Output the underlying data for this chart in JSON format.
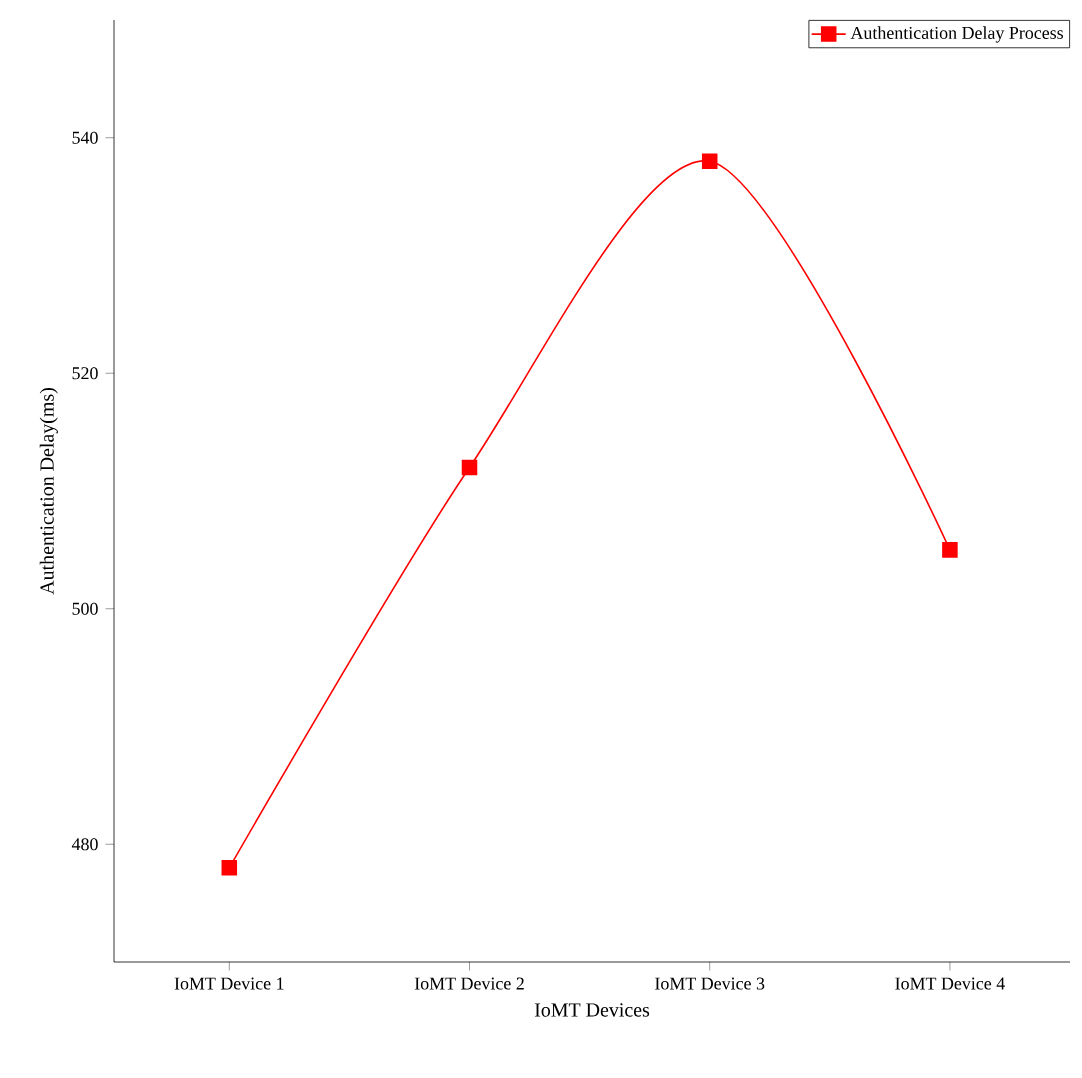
{
  "chart_data": {
    "type": "line",
    "xlabel": "IoMT Devices",
    "ylabel": "Authentication Delay(ms)",
    "categories": [
      "IoMT Device 1",
      "IoMT Device 2",
      "IoMT Device 3",
      "IoMT Device 4"
    ],
    "series": [
      {
        "name": "Authentication Delay Process",
        "color": "#ff0000",
        "values": [
          478,
          512,
          538,
          505
        ]
      }
    ],
    "ylim": [
      470,
      550
    ],
    "yticks": [
      480,
      500,
      520,
      540
    ],
    "marker": "square",
    "legend": "top right"
  }
}
